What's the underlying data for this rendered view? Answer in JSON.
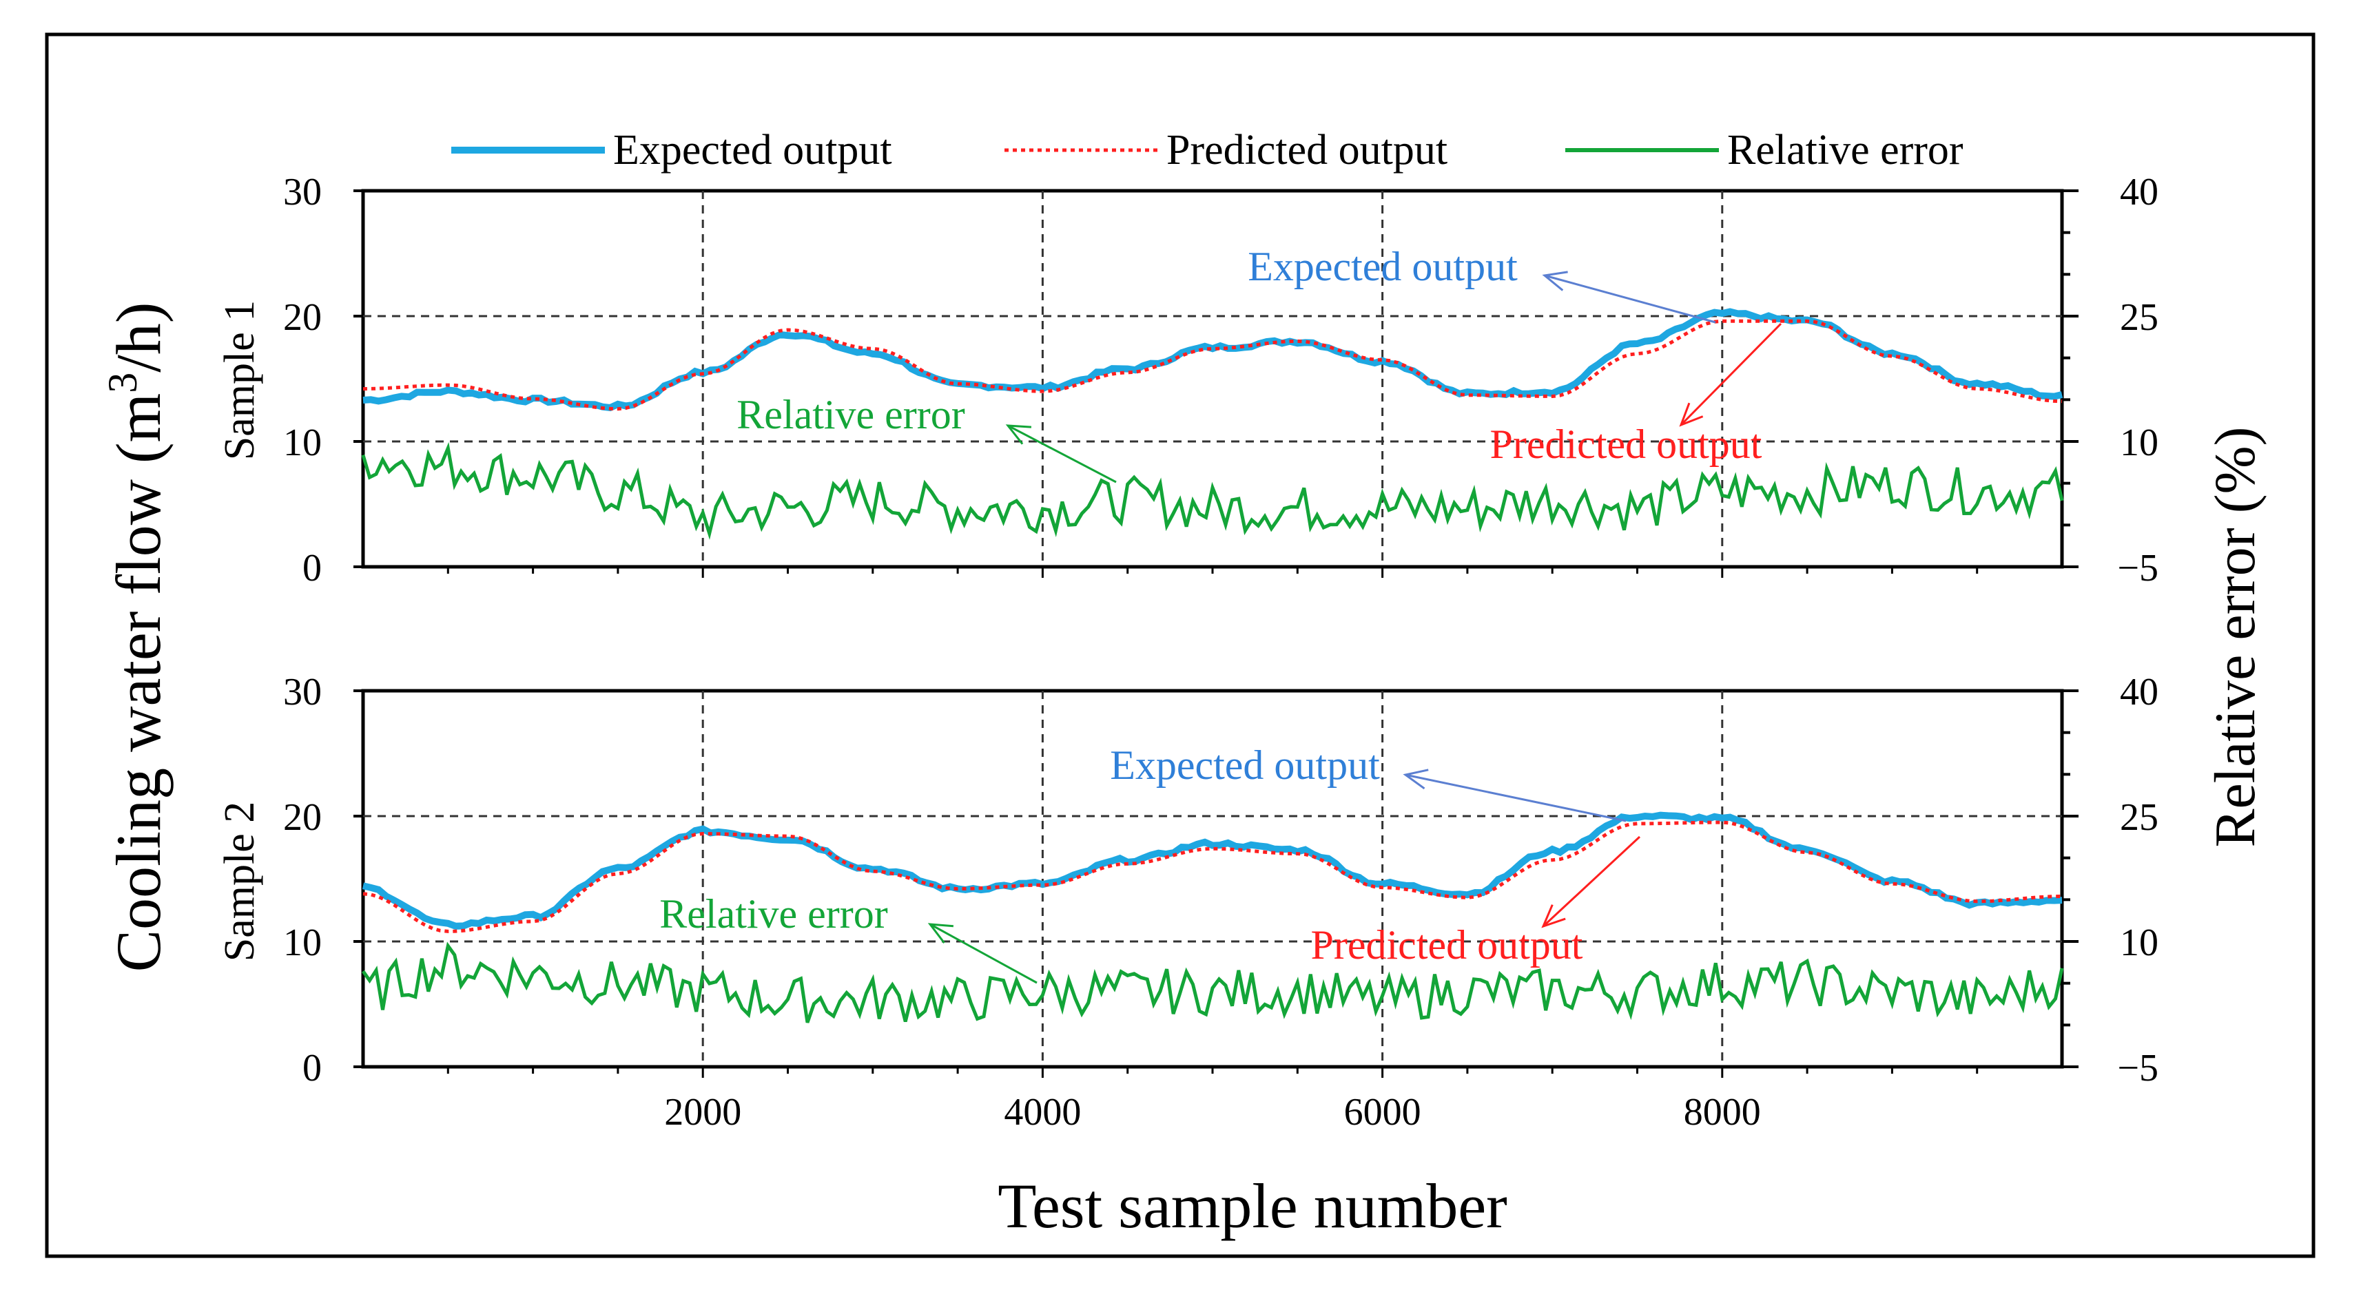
{
  "colors": {
    "expected": "#1ea7e1",
    "predicted": "#ff1f1f",
    "error": "#13a538",
    "grid": "#333333",
    "axis": "#000000"
  },
  "axis_labels": {
    "y_left": "Cooling water flow (m",
    "y_left_sup": "3",
    "y_left_tail": "/h)",
    "y_right": "Relative error (%)",
    "x": "Test sample number"
  },
  "legend": [
    {
      "key": "expected",
      "label": "Expected output"
    },
    {
      "key": "predicted",
      "label": "Predicted output"
    },
    {
      "key": "error",
      "label": "Relative error"
    }
  ],
  "chart_data": [
    {
      "type": "line",
      "panel_label": "Sample 1",
      "xlim": [
        0,
        10000
      ],
      "x_ticks": [
        2000,
        4000,
        6000,
        8000
      ],
      "ylim_left": [
        0,
        30
      ],
      "y_ticks_left": [
        0,
        10,
        20,
        30
      ],
      "ylim_right": [
        -5,
        40
      ],
      "y_ticks_right": [
        -5,
        10,
        25,
        40
      ],
      "x": [
        0,
        500,
        1000,
        1500,
        2000,
        2500,
        3000,
        3500,
        4000,
        4500,
        5000,
        5500,
        6000,
        6500,
        7000,
        7500,
        8000,
        8500,
        9000,
        9500,
        10000
      ],
      "series": [
        {
          "name": "Expected output",
          "key": "expected",
          "axis": "left",
          "values": [
            13.3,
            14.0,
            13.3,
            12.8,
            15.5,
            18.6,
            17.0,
            14.5,
            14.3,
            15.8,
            17.5,
            18.0,
            16.4,
            13.8,
            14.0,
            17.8,
            20.2,
            19.6,
            17.0,
            14.6,
            13.6
          ]
        },
        {
          "name": "Predicted output",
          "key": "predicted",
          "axis": "left",
          "values": [
            14.2,
            14.5,
            13.4,
            12.6,
            15.4,
            18.9,
            17.4,
            14.6,
            14.0,
            15.5,
            17.4,
            18.0,
            16.5,
            13.7,
            13.6,
            17.0,
            19.6,
            19.6,
            16.8,
            14.2,
            13.2
          ]
        },
        {
          "name": "Relative error",
          "key": "error",
          "axis": "right",
          "values": [
            8,
            7,
            6,
            4,
            1,
            2,
            3,
            2,
            2,
            3,
            2,
            2,
            2,
            2,
            3,
            2,
            4,
            4,
            5,
            4,
            4
          ]
        }
      ],
      "annotations": [
        {
          "text": "Expected output",
          "key": "expected"
        },
        {
          "text": "Relative  error",
          "key": "error"
        },
        {
          "text": "Predicted output",
          "key": "predicted"
        }
      ]
    },
    {
      "type": "line",
      "panel_label": "Sample 2",
      "xlim": [
        0,
        10000
      ],
      "x_ticks": [
        2000,
        4000,
        6000,
        8000
      ],
      "ylim_left": [
        0,
        30
      ],
      "y_ticks_left": [
        0,
        10,
        20,
        30
      ],
      "ylim_right": [
        -5,
        40
      ],
      "y_ticks_right": [
        -5,
        10,
        25,
        40
      ],
      "x": [
        0,
        500,
        1000,
        1500,
        2000,
        2500,
        3000,
        3500,
        4000,
        4500,
        5000,
        5500,
        6000,
        6500,
        7000,
        7500,
        8000,
        8500,
        9000,
        9500,
        10000
      ],
      "series": [
        {
          "name": "Expected output",
          "key": "expected",
          "axis": "left",
          "values": [
            14.3,
            11.3,
            12.0,
            15.8,
            18.8,
            18.2,
            15.8,
            14.2,
            14.6,
            16.5,
            17.8,
            17.3,
            14.6,
            13.8,
            17.2,
            20.0,
            19.8,
            17.3,
            14.8,
            13.0,
            13.3
          ]
        },
        {
          "name": "Predicted output",
          "key": "predicted",
          "axis": "left",
          "values": [
            13.8,
            10.8,
            11.6,
            15.4,
            18.6,
            18.4,
            15.6,
            14.2,
            14.5,
            16.2,
            17.4,
            17.0,
            14.3,
            13.5,
            16.5,
            19.4,
            19.5,
            17.1,
            14.6,
            13.2,
            13.6
          ]
        },
        {
          "name": "Relative error",
          "key": "error",
          "axis": "right",
          "values": [
            4,
            7,
            6,
            5,
            4,
            3,
            3,
            3,
            4,
            4,
            4,
            4,
            3,
            4,
            4,
            4,
            5,
            5,
            4,
            3,
            5
          ]
        }
      ],
      "annotations": [
        {
          "text": "Expected output",
          "key": "expected"
        },
        {
          "text": "Relative  error",
          "key": "error"
        },
        {
          "text": "Predicted output",
          "key": "predicted"
        }
      ]
    }
  ]
}
